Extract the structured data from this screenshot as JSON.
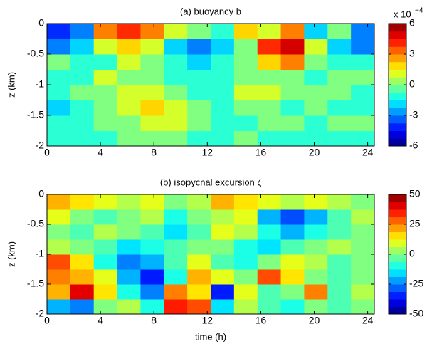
{
  "chart_data": [
    {
      "type": "heatmap",
      "title": "(a) buoyancy b",
      "ylabel": "z (km)",
      "colormap": "jet",
      "x": [
        0,
        1.75,
        3.5,
        5.25,
        7,
        8.75,
        10.5,
        12.25,
        14,
        15.75,
        17.5,
        19.25,
        21,
        22.75,
        24.5
      ],
      "y": [
        -2,
        -1.75,
        -1.5,
        -1.25,
        -1,
        -0.75,
        -0.5,
        -0.25,
        0
      ],
      "values": [
        [
          -1,
          -1,
          -1,
          0,
          0,
          0,
          -1,
          -1,
          0,
          -1,
          -1,
          -1,
          -1,
          -1
        ],
        [
          -1,
          -1,
          0,
          0,
          1,
          1,
          0,
          -1,
          -1,
          0,
          0,
          -1,
          0,
          0
        ],
        [
          -2,
          -1,
          0,
          1,
          2,
          1,
          0,
          -1,
          0,
          0,
          -1,
          0,
          -1,
          -1
        ],
        [
          -1,
          0,
          0,
          1,
          1,
          0,
          -1,
          -1,
          1,
          1,
          0,
          0,
          0,
          -1
        ],
        [
          -1,
          -1,
          1,
          0,
          0,
          -1,
          -1,
          -1,
          0,
          0,
          0,
          -1,
          0,
          0
        ],
        [
          0,
          -1,
          -1,
          1,
          0,
          -1,
          -2,
          -1,
          0,
          2,
          3,
          0,
          -1,
          -1
        ],
        [
          -3,
          -2,
          1,
          2,
          1,
          -2,
          -3,
          -2,
          0,
          4,
          5,
          1,
          -2,
          -3
        ],
        [
          -4,
          -3,
          3,
          4,
          3,
          1,
          0,
          -1,
          2,
          1,
          3,
          -2,
          0,
          -3
        ]
      ],
      "xlim": [
        0,
        24.5
      ],
      "xticks": [
        0,
        4,
        8,
        12,
        16,
        20,
        24
      ],
      "ylim": [
        -2,
        0
      ],
      "yticks": [
        -2,
        -1.5,
        -1,
        -0.5,
        0
      ],
      "clim": [
        -6,
        6
      ],
      "cticks": [
        -6,
        -3,
        0,
        3,
        6
      ],
      "colorbar_multiplier": "x 10",
      "colorbar_exponent": "−4"
    },
    {
      "type": "heatmap",
      "title": "(b) isopycnal excursion ζ",
      "ylabel": "z (km)",
      "xlabel": "time (h)",
      "colormap": "jet",
      "x": [
        0,
        1.75,
        3.5,
        5.25,
        7,
        8.75,
        10.5,
        12.25,
        14,
        15.75,
        17.5,
        19.25,
        21,
        22.75,
        24.5
      ],
      "y": [
        -2,
        -1.75,
        -1.5,
        -1.25,
        -1,
        -0.75,
        -0.5,
        -0.25,
        0
      ],
      "values": [
        [
          -20,
          -25,
          0,
          5,
          -10,
          35,
          30,
          -15,
          5,
          -5,
          -10,
          0,
          -5,
          0
        ],
        [
          20,
          40,
          15,
          -10,
          -25,
          25,
          15,
          -35,
          10,
          -5,
          0,
          25,
          -5,
          5
        ],
        [
          25,
          20,
          10,
          -20,
          -35,
          -10,
          20,
          10,
          0,
          30,
          15,
          0,
          -5,
          0
        ],
        [
          30,
          15,
          -10,
          -25,
          -20,
          -5,
          10,
          -5,
          -10,
          0,
          10,
          5,
          -5,
          0
        ],
        [
          5,
          0,
          -5,
          -15,
          -10,
          -5,
          0,
          0,
          -10,
          -15,
          -5,
          0,
          5,
          0
        ],
        [
          0,
          -5,
          5,
          0,
          -5,
          -15,
          -5,
          10,
          5,
          -10,
          -20,
          -10,
          -5,
          0
        ],
        [
          10,
          0,
          -5,
          0,
          5,
          -10,
          0,
          5,
          10,
          -20,
          -30,
          -20,
          -5,
          5
        ],
        [
          20,
          15,
          10,
          5,
          10,
          0,
          5,
          20,
          15,
          10,
          5,
          10,
          5,
          0
        ]
      ],
      "xlim": [
        0,
        24.5
      ],
      "xticks": [
        0,
        4,
        8,
        12,
        16,
        20,
        24
      ],
      "ylim": [
        -2,
        0
      ],
      "yticks": [
        -2,
        -1.5,
        -1,
        -0.5,
        0
      ],
      "clim": [
        -50,
        50
      ],
      "cticks": [
        -50,
        -25,
        0,
        25,
        50
      ]
    }
  ]
}
